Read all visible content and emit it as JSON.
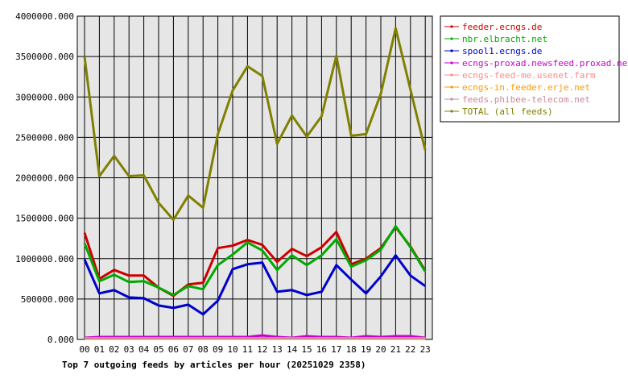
{
  "chart_data": {
    "type": "line",
    "title": "Top 7 outgoing feeds by articles per hour (20251029 2358)",
    "xlabel": "",
    "ylabel": "",
    "x": [
      "00",
      "01",
      "02",
      "03",
      "04",
      "05",
      "06",
      "07",
      "08",
      "09",
      "10",
      "11",
      "12",
      "13",
      "14",
      "15",
      "16",
      "17",
      "18",
      "19",
      "20",
      "21",
      "22",
      "23"
    ],
    "ylim": [
      0,
      4000000
    ],
    "yticks": [
      "0.000",
      "500000.000",
      "1000000.000",
      "1500000.000",
      "2000000.000",
      "2500000.000",
      "3000000.000",
      "3500000.000",
      "4000000.000"
    ],
    "grid": true,
    "legend_position": "top-right",
    "series": [
      {
        "name": "feeder.ecngs.de",
        "color": "#cc0000",
        "values": [
          1320000,
          750000,
          860000,
          790000,
          790000,
          640000,
          540000,
          680000,
          700000,
          1130000,
          1160000,
          1230000,
          1170000,
          960000,
          1120000,
          1030000,
          1140000,
          1330000,
          930000,
          1000000,
          1130000,
          1390000,
          1150000,
          850000
        ]
      },
      {
        "name": "nbr.elbracht.net",
        "color": "#00aa00",
        "values": [
          1190000,
          720000,
          800000,
          710000,
          720000,
          640000,
          550000,
          660000,
          620000,
          920000,
          1050000,
          1200000,
          1100000,
          860000,
          1040000,
          920000,
          1040000,
          1240000,
          900000,
          980000,
          1110000,
          1400000,
          1140000,
          840000
        ]
      },
      {
        "name": "spool1.ecngs.de",
        "color": "#0000cc",
        "values": [
          990000,
          570000,
          610000,
          520000,
          510000,
          420000,
          390000,
          430000,
          310000,
          480000,
          870000,
          930000,
          950000,
          590000,
          610000,
          550000,
          590000,
          920000,
          740000,
          570000,
          780000,
          1040000,
          790000,
          660000
        ]
      },
      {
        "name": "ecngs-proxad.newsfeed.proxad.net",
        "color": "#cc00cc",
        "values": [
          20000,
          30000,
          30000,
          30000,
          30000,
          30000,
          30000,
          30000,
          30000,
          30000,
          30000,
          30000,
          50000,
          30000,
          20000,
          40000,
          30000,
          30000,
          20000,
          40000,
          30000,
          40000,
          40000,
          20000
        ]
      },
      {
        "name": "ecngs-feed-me.usenet.farm",
        "color": "#ff8888",
        "values": [
          10000,
          10000,
          10000,
          10000,
          10000,
          10000,
          10000,
          10000,
          10000,
          10000,
          10000,
          10000,
          10000,
          10000,
          10000,
          10000,
          10000,
          10000,
          10000,
          10000,
          10000,
          10000,
          10000,
          10000
        ]
      },
      {
        "name": "ecngs-in.feeder.erje.net",
        "color": "#ff9900",
        "values": [
          10000,
          10000,
          10000,
          10000,
          10000,
          10000,
          10000,
          10000,
          10000,
          10000,
          10000,
          10000,
          10000,
          10000,
          10000,
          10000,
          10000,
          10000,
          10000,
          10000,
          10000,
          10000,
          10000,
          10000
        ]
      },
      {
        "name": "feeds.phibee-telecom.net",
        "color": "#cc8899",
        "values": [
          15000,
          15000,
          15000,
          15000,
          15000,
          15000,
          15000,
          15000,
          15000,
          15000,
          15000,
          15000,
          15000,
          15000,
          15000,
          15000,
          15000,
          15000,
          15000,
          15000,
          15000,
          15000,
          15000,
          15000
        ]
      },
      {
        "name": "TOTAL (all feeds)",
        "color": "#808000",
        "values": [
          3500000,
          2020000,
          2270000,
          2020000,
          2030000,
          1690000,
          1480000,
          1780000,
          1630000,
          2540000,
          3080000,
          3380000,
          3260000,
          2420000,
          2770000,
          2510000,
          2760000,
          3510000,
          2520000,
          2540000,
          3040000,
          3850000,
          3090000,
          2340000
        ]
      }
    ]
  }
}
